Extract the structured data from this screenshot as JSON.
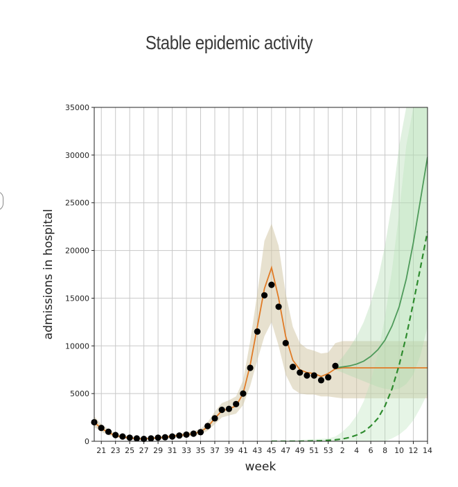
{
  "chart_data": {
    "type": "line",
    "title": "Stable epidemic activity",
    "xlabel": "week",
    "ylabel": "admissions in hospital",
    "ylim": [
      0,
      35000
    ],
    "yticks": [
      0,
      5000,
      10000,
      15000,
      20000,
      25000,
      30000,
      35000
    ],
    "week_sequence": [
      20,
      21,
      22,
      23,
      24,
      25,
      26,
      27,
      28,
      29,
      30,
      31,
      32,
      33,
      34,
      35,
      36,
      37,
      38,
      39,
      40,
      41,
      42,
      43,
      44,
      45,
      46,
      47,
      48,
      49,
      50,
      51,
      52,
      53,
      1,
      2,
      3,
      4,
      5,
      6,
      7,
      8,
      9,
      10,
      11,
      12,
      13,
      14
    ],
    "xtick_labels": [
      "21",
      "23",
      "25",
      "27",
      "29",
      "31",
      "33",
      "35",
      "37",
      "39",
      "41",
      "43",
      "45",
      "47",
      "49",
      "51",
      "53",
      "2",
      "4",
      "6",
      "8",
      "10",
      "12",
      "14"
    ],
    "grid": true,
    "observed": {
      "marker": "circle",
      "color": "#000000",
      "points": [
        [
          20,
          2000
        ],
        [
          21,
          1400
        ],
        [
          22,
          1000
        ],
        [
          23,
          650
        ],
        [
          24,
          500
        ],
        [
          25,
          380
        ],
        [
          26,
          300
        ],
        [
          27,
          250
        ],
        [
          28,
          300
        ],
        [
          29,
          380
        ],
        [
          30,
          420
        ],
        [
          31,
          500
        ],
        [
          32,
          600
        ],
        [
          33,
          700
        ],
        [
          34,
          800
        ],
        [
          35,
          950
        ],
        [
          36,
          1600
        ],
        [
          37,
          2400
        ],
        [
          38,
          3300
        ],
        [
          39,
          3400
        ],
        [
          40,
          3900
        ],
        [
          41,
          5000
        ],
        [
          42,
          7700
        ],
        [
          43,
          11500
        ],
        [
          44,
          15300
        ],
        [
          45,
          16400
        ],
        [
          46,
          14100
        ],
        [
          47,
          10300
        ],
        [
          48,
          7800
        ],
        [
          49,
          7200
        ],
        [
          50,
          6900
        ],
        [
          51,
          6900
        ],
        [
          52,
          6400
        ],
        [
          53,
          6700
        ],
        [
          1,
          7900
        ]
      ]
    },
    "series": [
      {
        "color": "#e07b26",
        "style": "solid",
        "values": [
          [
            20,
            2000
          ],
          [
            21,
            1350
          ],
          [
            22,
            900
          ],
          [
            23,
            600
          ],
          [
            24,
            450
          ],
          [
            25,
            350
          ],
          [
            26,
            280
          ],
          [
            27,
            250
          ],
          [
            28,
            300
          ],
          [
            29,
            360
          ],
          [
            30,
            420
          ],
          [
            31,
            520
          ],
          [
            32,
            620
          ],
          [
            33,
            700
          ],
          [
            34,
            800
          ],
          [
            35,
            1000
          ],
          [
            36,
            1500
          ],
          [
            37,
            2400
          ],
          [
            38,
            3200
          ],
          [
            39,
            3400
          ],
          [
            40,
            3700
          ],
          [
            41,
            5000
          ],
          [
            42,
            8000
          ],
          [
            43,
            12000
          ],
          [
            44,
            16000
          ],
          [
            45,
            18200
          ],
          [
            46,
            15000
          ],
          [
            47,
            11000
          ],
          [
            48,
            8500
          ],
          [
            49,
            7500
          ],
          [
            50,
            7200
          ],
          [
            51,
            7100
          ],
          [
            52,
            6800
          ],
          [
            53,
            7100
          ],
          [
            1,
            7600
          ],
          [
            2,
            7700
          ],
          [
            3,
            7700
          ],
          [
            4,
            7700
          ],
          [
            5,
            7700
          ],
          [
            6,
            7700
          ],
          [
            7,
            7700
          ],
          [
            8,
            7700
          ],
          [
            9,
            7700
          ],
          [
            10,
            7700
          ],
          [
            11,
            7700
          ],
          [
            12,
            7700
          ],
          [
            13,
            7700
          ],
          [
            14,
            7700
          ]
        ],
        "band_lower": [
          [
            20,
            1500
          ],
          [
            21,
            1000
          ],
          [
            22,
            650
          ],
          [
            23,
            400
          ],
          [
            24,
            300
          ],
          [
            25,
            220
          ],
          [
            26,
            180
          ],
          [
            27,
            150
          ],
          [
            28,
            200
          ],
          [
            29,
            240
          ],
          [
            30,
            280
          ],
          [
            31,
            350
          ],
          [
            32,
            420
          ],
          [
            33,
            480
          ],
          [
            34,
            550
          ],
          [
            35,
            700
          ],
          [
            36,
            1100
          ],
          [
            37,
            1800
          ],
          [
            38,
            2500
          ],
          [
            39,
            2700
          ],
          [
            40,
            2900
          ],
          [
            41,
            3800
          ],
          [
            42,
            5800
          ],
          [
            43,
            8500
          ],
          [
            44,
            11000
          ],
          [
            45,
            12500
          ],
          [
            46,
            10000
          ],
          [
            47,
            7000
          ],
          [
            48,
            5500
          ],
          [
            49,
            5000
          ],
          [
            50,
            4900
          ],
          [
            51,
            4900
          ],
          [
            52,
            4700
          ],
          [
            53,
            4700
          ],
          [
            1,
            4600
          ],
          [
            2,
            4500
          ],
          [
            3,
            4500
          ],
          [
            4,
            4500
          ],
          [
            5,
            4500
          ],
          [
            6,
            4500
          ],
          [
            7,
            4500
          ],
          [
            8,
            4500
          ],
          [
            9,
            4500
          ],
          [
            10,
            4500
          ],
          [
            11,
            4500
          ],
          [
            12,
            4500
          ],
          [
            13,
            4500
          ],
          [
            14,
            4500
          ]
        ],
        "band_upper": [
          [
            20,
            2600
          ],
          [
            21,
            1800
          ],
          [
            22,
            1250
          ],
          [
            23,
            850
          ],
          [
            24,
            650
          ],
          [
            25,
            520
          ],
          [
            26,
            420
          ],
          [
            27,
            380
          ],
          [
            28,
            430
          ],
          [
            29,
            500
          ],
          [
            30,
            580
          ],
          [
            31,
            700
          ],
          [
            32,
            820
          ],
          [
            33,
            920
          ],
          [
            34,
            1050
          ],
          [
            35,
            1300
          ],
          [
            36,
            2000
          ],
          [
            37,
            3100
          ],
          [
            38,
            4000
          ],
          [
            39,
            4300
          ],
          [
            40,
            4700
          ],
          [
            41,
            6400
          ],
          [
            42,
            10500
          ],
          [
            43,
            15500
          ],
          [
            44,
            21000
          ],
          [
            45,
            22800
          ],
          [
            46,
            20500
          ],
          [
            47,
            15500
          ],
          [
            48,
            12000
          ],
          [
            49,
            10300
          ],
          [
            50,
            9700
          ],
          [
            51,
            9500
          ],
          [
            52,
            9200
          ],
          [
            53,
            9300
          ],
          [
            1,
            10300
          ],
          [
            2,
            10500
          ],
          [
            3,
            10500
          ],
          [
            4,
            10500
          ],
          [
            5,
            10500
          ],
          [
            6,
            10500
          ],
          [
            7,
            10500
          ],
          [
            8,
            10500
          ],
          [
            9,
            10500
          ],
          [
            10,
            10500
          ],
          [
            11,
            10500
          ],
          [
            12,
            10500
          ],
          [
            13,
            10500
          ],
          [
            14,
            10500
          ]
        ]
      },
      {
        "color": "#4e9a5a",
        "style": "solid",
        "values": [
          [
            1,
            7700
          ],
          [
            2,
            7800
          ],
          [
            3,
            7900
          ],
          [
            4,
            8100
          ],
          [
            5,
            8400
          ],
          [
            6,
            8900
          ],
          [
            7,
            9600
          ],
          [
            8,
            10600
          ],
          [
            9,
            12100
          ],
          [
            10,
            14100
          ],
          [
            11,
            17000
          ],
          [
            12,
            20800
          ],
          [
            13,
            25300
          ],
          [
            14,
            29800
          ]
        ],
        "band_lower": [
          [
            1,
            7500
          ],
          [
            2,
            7200
          ],
          [
            3,
            6900
          ],
          [
            4,
            6600
          ],
          [
            5,
            6300
          ],
          [
            6,
            6000
          ],
          [
            7,
            5700
          ],
          [
            8,
            5500
          ],
          [
            9,
            5400
          ],
          [
            10,
            5500
          ],
          [
            11,
            6000
          ],
          [
            12,
            7000
          ],
          [
            13,
            9000
          ],
          [
            14,
            12000
          ]
        ],
        "band_upper": [
          [
            1,
            8000
          ],
          [
            2,
            8800
          ],
          [
            3,
            9800
          ],
          [
            4,
            11000
          ],
          [
            5,
            12500
          ],
          [
            6,
            14500
          ],
          [
            7,
            17000
          ],
          [
            8,
            20500
          ],
          [
            9,
            25000
          ],
          [
            10,
            31000
          ],
          [
            11,
            35000
          ],
          [
            12,
            35000
          ],
          [
            13,
            35000
          ],
          [
            14,
            35000
          ]
        ]
      },
      {
        "color": "#2e8b2e",
        "style": "dashed",
        "values": [
          [
            45,
            0
          ],
          [
            46,
            0
          ],
          [
            47,
            0
          ],
          [
            48,
            0
          ],
          [
            49,
            0
          ],
          [
            50,
            20
          ],
          [
            51,
            40
          ],
          [
            52,
            60
          ],
          [
            53,
            100
          ],
          [
            1,
            150
          ],
          [
            2,
            250
          ],
          [
            3,
            400
          ],
          [
            4,
            650
          ],
          [
            5,
            1000
          ],
          [
            6,
            1600
          ],
          [
            7,
            2400
          ],
          [
            8,
            3700
          ],
          [
            9,
            5500
          ],
          [
            10,
            8000
          ],
          [
            11,
            11000
          ],
          [
            12,
            14500
          ],
          [
            13,
            18200
          ],
          [
            14,
            22000
          ]
        ],
        "band_lower": [
          [
            45,
            0
          ],
          [
            53,
            0
          ],
          [
            1,
            0
          ],
          [
            2,
            0
          ],
          [
            3,
            0
          ],
          [
            4,
            0
          ],
          [
            5,
            0
          ],
          [
            6,
            0
          ],
          [
            7,
            0
          ],
          [
            8,
            0
          ],
          [
            9,
            300
          ],
          [
            10,
            700
          ],
          [
            11,
            1300
          ],
          [
            12,
            2200
          ],
          [
            13,
            3500
          ],
          [
            14,
            5000
          ]
        ],
        "band_upper": [
          [
            45,
            0
          ],
          [
            53,
            300
          ],
          [
            1,
            500
          ],
          [
            2,
            1000
          ],
          [
            3,
            1700
          ],
          [
            4,
            2700
          ],
          [
            5,
            4200
          ],
          [
            6,
            6300
          ],
          [
            7,
            9200
          ],
          [
            8,
            13000
          ],
          [
            9,
            18000
          ],
          [
            10,
            24000
          ],
          [
            11,
            31000
          ],
          [
            12,
            35000
          ],
          [
            13,
            35000
          ],
          [
            14,
            35000
          ]
        ]
      }
    ]
  }
}
